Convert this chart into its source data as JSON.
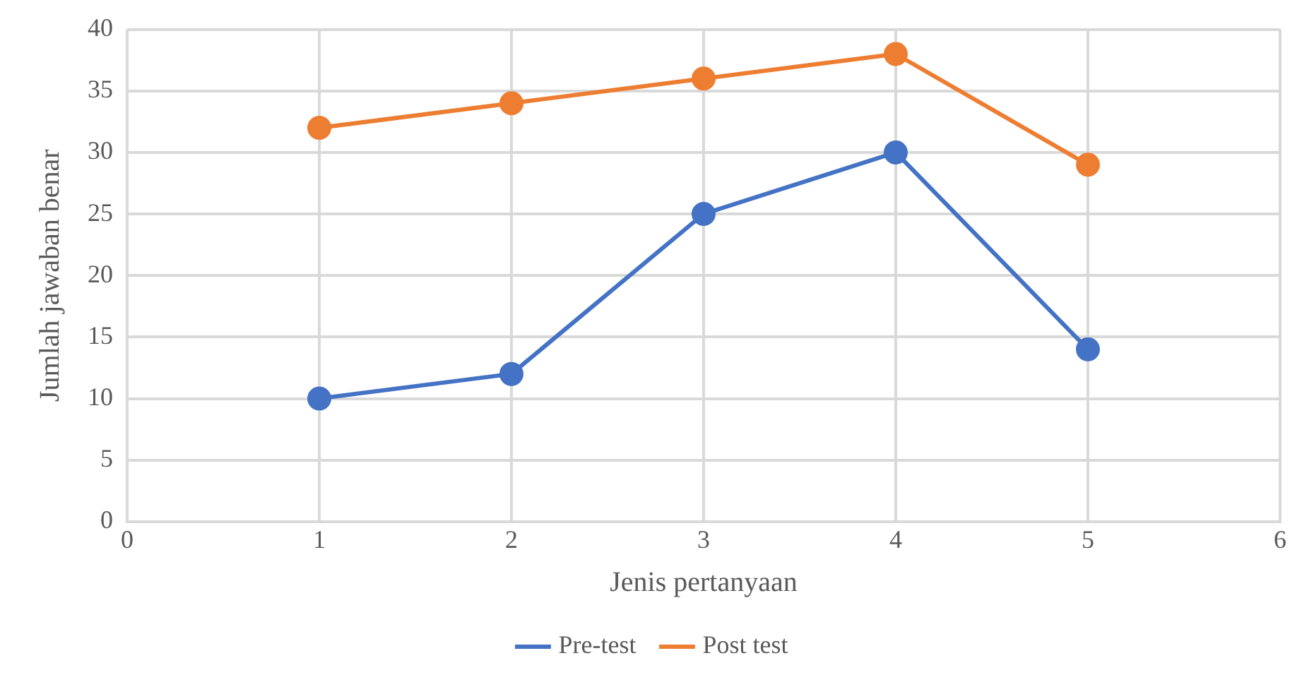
{
  "chart_data": {
    "type": "line",
    "xlabel": "Jenis pertanyaan",
    "ylabel": "Jumlah jawaban benar",
    "x": [
      1,
      2,
      3,
      4,
      5
    ],
    "series": [
      {
        "name": "Pre-test",
        "color": "#4472c4",
        "values": [
          10,
          12,
          25,
          30,
          14
        ]
      },
      {
        "name": "Post test",
        "color": "#ed7d31",
        "values": [
          32,
          34,
          36,
          38,
          29
        ]
      }
    ],
    "xlim": [
      0,
      6
    ],
    "xticks": [
      0,
      1,
      2,
      3,
      4,
      5,
      6
    ],
    "ylim": [
      0,
      40
    ],
    "yticks": [
      0,
      5,
      10,
      15,
      20,
      25,
      30,
      35,
      40
    ],
    "grid": true,
    "legend": "bottom",
    "marker": "circle",
    "line_style": "solid"
  }
}
